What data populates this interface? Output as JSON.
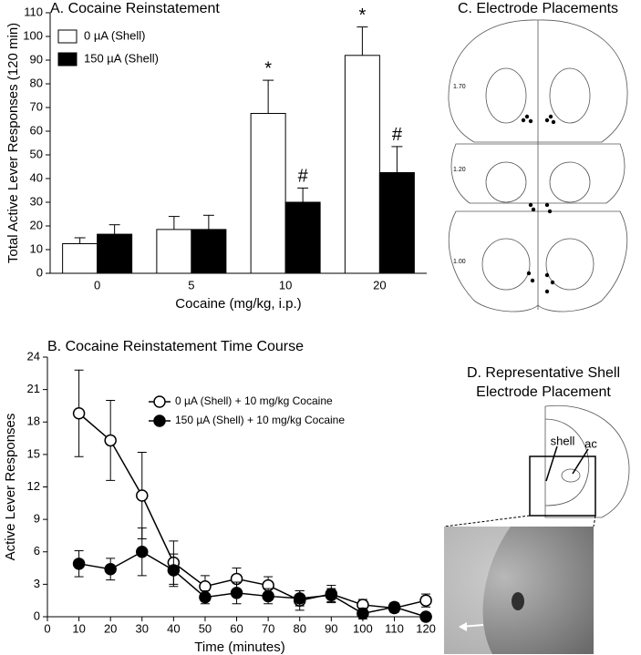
{
  "chart_data": [
    {
      "type": "bar",
      "title": "A. Cocaine Reinstatement",
      "x_label": "Cocaine (mg/kg, i.p.)",
      "y_label": "Total Active Lever Responses (120 min)",
      "categories": [
        "0",
        "5",
        "10",
        "20"
      ],
      "series": [
        {
          "name": "0 µA (Shell)",
          "color": "#ffffff",
          "values": [
            12.5,
            18.5,
            67.5,
            92
          ],
          "errors": [
            2.5,
            5.5,
            14,
            12
          ],
          "significance": [
            null,
            null,
            "*",
            "*"
          ]
        },
        {
          "name": "150 µA (Shell)",
          "color": "#000000",
          "values": [
            16.5,
            18.5,
            30,
            42.5
          ],
          "errors": [
            4,
            6,
            6,
            11
          ],
          "significance": [
            null,
            null,
            "#",
            "#"
          ]
        }
      ],
      "ylim": [
        0,
        110
      ],
      "yticks": [
        0,
        10,
        20,
        30,
        40,
        50,
        60,
        70,
        80,
        90,
        100,
        110
      ]
    },
    {
      "type": "line",
      "title": "B. Cocaine Reinstatement Time Course",
      "x_label": "Time (minutes)",
      "y_label": "Active Lever Responses",
      "x": [
        10,
        20,
        30,
        40,
        50,
        60,
        70,
        80,
        90,
        100,
        110,
        120
      ],
      "series": [
        {
          "name": "0 µA (Shell) + 10 mg/kg Cocaine",
          "color": "#ffffff",
          "values": [
            18.8,
            16.3,
            11.2,
            5.0,
            2.8,
            3.5,
            2.9,
            1.5,
            2.1,
            1.1,
            0.8,
            1.5
          ],
          "errors": [
            4,
            3.7,
            4,
            2,
            1,
            1,
            0.8,
            0.9,
            0.8,
            0.5,
            0.4,
            0.6
          ]
        },
        {
          "name": "150 µA (Shell) + 10 mg/kg Cocaine",
          "color": "#000000",
          "values": [
            4.9,
            4.4,
            6.0,
            4.3,
            1.8,
            2.2,
            1.9,
            1.7,
            2.0,
            0.3,
            0.9,
            0
          ],
          "errors": [
            1.2,
            1,
            2.2,
            1.5,
            0.6,
            1,
            0.7,
            0.7,
            0.6,
            0.5,
            0.4,
            0.1
          ]
        }
      ],
      "xlim": [
        0,
        122
      ],
      "xticks": [
        0,
        10,
        20,
        30,
        40,
        50,
        60,
        70,
        80,
        90,
        100,
        110,
        120
      ],
      "ylim": [
        0,
        24
      ],
      "yticks": [
        0,
        3,
        6,
        9,
        12,
        15,
        18,
        21,
        24
      ]
    }
  ],
  "panels": {
    "c": {
      "title": "C. Electrode Placements",
      "levels": [
        "1.70",
        "1.20",
        "1.00"
      ]
    },
    "d": {
      "title": [
        "D. Representative Shell",
        "Electrode Placement"
      ],
      "labels": [
        "shell",
        "ac"
      ]
    }
  }
}
